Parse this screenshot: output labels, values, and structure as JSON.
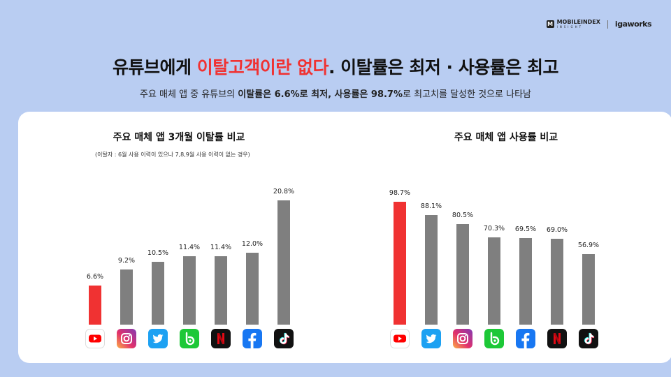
{
  "brand": {
    "mobileindex": "MOBILEINDEX",
    "insight": "INSIGHT",
    "igaworks": "igaworks"
  },
  "headline": {
    "part1": "유튜브에게 ",
    "highlight": "이탈고객이란 없다",
    "part2": ". 이탈률은 최저 · 사용률은 최고"
  },
  "subline": {
    "p1": "주요 매체 앱 중 유튜브의 ",
    "b1": "이탈률은 6.6%로 최저, 사용률은 98.7%",
    "p2": "로 최고치를 달성한 것으로 나타남"
  },
  "colors": {
    "highlight": "#f03232",
    "gray_bar": "#7f7f7f"
  },
  "chart_data": [
    {
      "type": "bar",
      "title": "주요 매체 앱 3개월 이탈률 비교",
      "note": "(이탈자 : 6월 사용 이력이 있으나 7,8,9월 사용 이력이 없는 경우)",
      "categories": [
        "youtube-icon",
        "instagram-icon",
        "twitter-icon",
        "band-icon",
        "netflix-icon",
        "facebook-icon",
        "tiktok-icon"
      ],
      "values": [
        6.6,
        9.2,
        10.5,
        11.4,
        11.4,
        12.0,
        20.8
      ],
      "labels": [
        "6.6%",
        "9.2%",
        "10.5%",
        "11.4%",
        "11.4%",
        "12.0%",
        "20.8%"
      ],
      "colors": [
        "#f03232",
        "#7f7f7f",
        "#7f7f7f",
        "#7f7f7f",
        "#7f7f7f",
        "#7f7f7f",
        "#7f7f7f"
      ]
    },
    {
      "type": "bar",
      "title": "주요 매체 앱 사용률 비교",
      "categories": [
        "youtube-icon",
        "twitter-icon",
        "instagram-icon",
        "band-icon",
        "facebook-icon",
        "netflix-icon",
        "tiktok-icon"
      ],
      "values": [
        98.7,
        88.1,
        80.5,
        70.3,
        69.5,
        69.0,
        56.9
      ],
      "labels": [
        "98.7%",
        "88.1%",
        "80.5%",
        "70.3%",
        "69.5%",
        "69.0%",
        "56.9%"
      ],
      "colors": [
        "#f03232",
        "#7f7f7f",
        "#7f7f7f",
        "#7f7f7f",
        "#7f7f7f",
        "#7f7f7f",
        "#7f7f7f"
      ]
    }
  ]
}
